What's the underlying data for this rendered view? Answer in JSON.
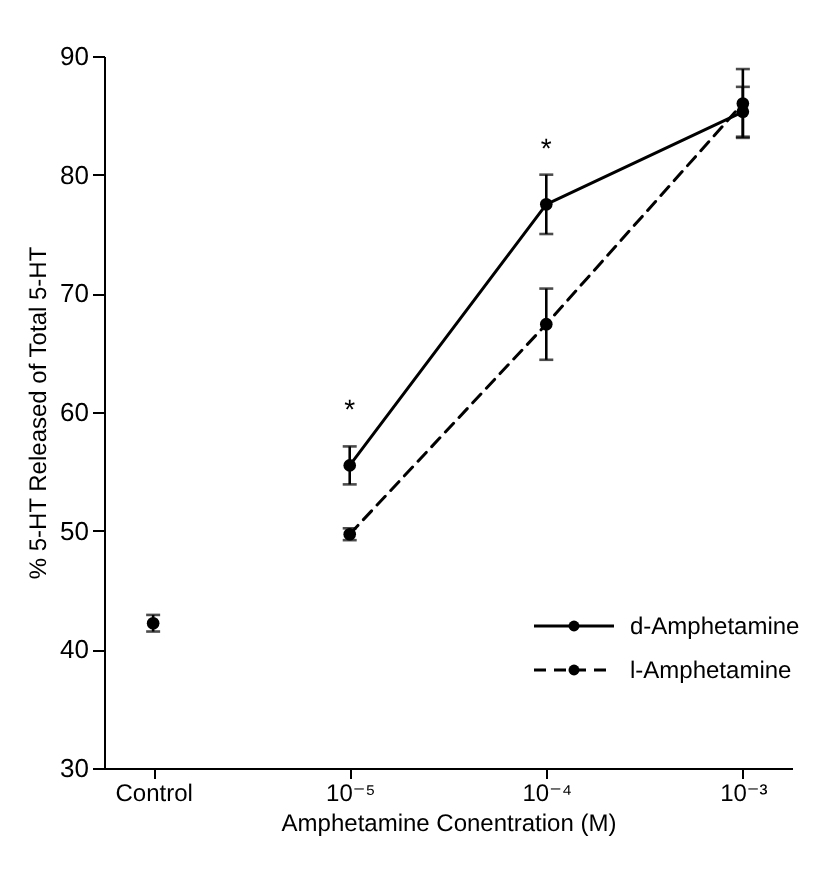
{
  "chart_data": {
    "type": "line",
    "xlabel": "Amphetamine Conentration (M)",
    "ylabel": "% 5-HT Released of Total 5-HT",
    "categories": [
      "Control",
      "10⁻⁵",
      "10⁻⁴",
      "10⁻³"
    ],
    "series": [
      {
        "type": "scatter",
        "color": "#000000",
        "values": [
          42.2,
          null,
          null,
          null
        ],
        "errors": [
          0.7,
          null,
          null,
          null
        ]
      },
      {
        "name": "d-Amphetamine",
        "color": "#000000",
        "line_style": "solid",
        "values": [
          null,
          55.5,
          77.5,
          85.3
        ],
        "errors": [
          null,
          1.6,
          2.5,
          2.1
        ]
      },
      {
        "name": "l-Amphetamine",
        "color": "#000000",
        "line_style": "dashed",
        "values": [
          null,
          49.7,
          67.4,
          86
        ],
        "errors": [
          null,
          0.5,
          3,
          2.9
        ]
      }
    ],
    "ylim": [
      30,
      90
    ],
    "yticks": [
      30,
      40,
      50,
      60,
      70,
      80,
      90
    ],
    "grid": false,
    "marker": "circle",
    "legend": "right",
    "annotations": [
      {
        "text": "*",
        "x": "10⁻⁵",
        "y": 55.5
      },
      {
        "text": "*",
        "x": "10⁻⁴",
        "y": 77.5
      }
    ]
  }
}
